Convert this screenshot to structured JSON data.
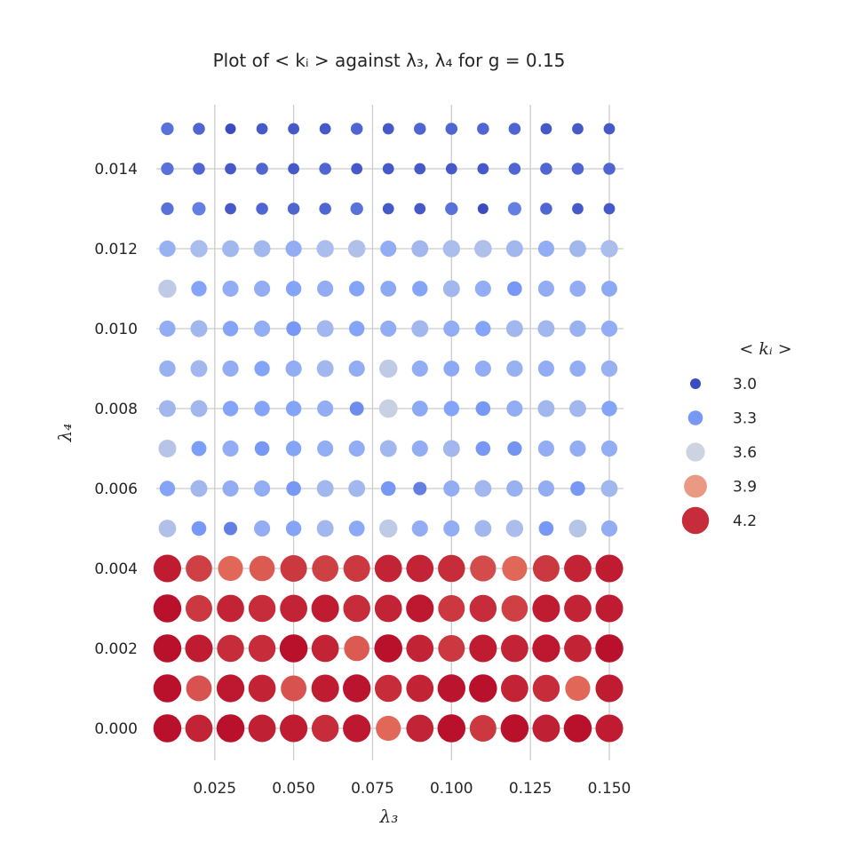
{
  "chart_data": {
    "type": "scatter",
    "title": "Plot of  < kᵢ >  against λ₃, λ₄ for g = 0.15",
    "xlabel": "λ₃",
    "ylabel": "λ₄",
    "x": [
      0.01,
      0.02,
      0.03,
      0.04,
      0.05,
      0.06,
      0.07,
      0.08,
      0.09,
      0.1,
      0.11,
      0.12,
      0.13,
      0.14,
      0.15
    ],
    "y": [
      0.0,
      0.001,
      0.002,
      0.003,
      0.004,
      0.005,
      0.006,
      0.007,
      0.008,
      0.009,
      0.01,
      0.011,
      0.012,
      0.013,
      0.014,
      0.015
    ],
    "xticks": [
      "0.025",
      "0.050",
      "0.075",
      "0.100",
      "0.125",
      "0.150"
    ],
    "xtick_values": [
      0.025,
      0.05,
      0.075,
      0.1,
      0.125,
      0.15
    ],
    "yticks": [
      "0.000",
      "0.002",
      "0.004",
      "0.006",
      "0.008",
      "0.010",
      "0.012",
      "0.014"
    ],
    "ytick_values": [
      0.0,
      0.002,
      0.004,
      0.006,
      0.008,
      0.01,
      0.012,
      0.014
    ],
    "xlim": [
      0.0065,
      0.1545
    ],
    "ylim": [
      -0.0008,
      0.0156
    ],
    "grid": true,
    "legend": {
      "title": "< kᵢ >",
      "placement": "right",
      "entries": [
        {
          "label": "3.0",
          "value": 3.0
        },
        {
          "label": "3.3",
          "value": 3.3
        },
        {
          "label": "3.6",
          "value": 3.6
        },
        {
          "label": "3.9",
          "value": 3.9
        },
        {
          "label": "4.2",
          "value": 4.2
        }
      ]
    },
    "color_range": [
      3.0,
      4.3
    ],
    "colormap": "coolwarm",
    "values": [
      [
        4.27,
        4.22,
        4.27,
        4.23,
        4.24,
        4.2,
        4.25,
        4.05,
        4.22,
        4.27,
        4.17,
        4.27,
        4.23,
        4.27,
        4.24
      ],
      [
        4.27,
        4.1,
        4.25,
        4.22,
        4.1,
        4.24,
        4.26,
        4.2,
        4.22,
        4.26,
        4.27,
        4.22,
        4.2,
        4.05,
        4.24
      ],
      [
        4.27,
        4.24,
        4.2,
        4.2,
        4.27,
        4.22,
        4.08,
        4.27,
        4.22,
        4.17,
        4.24,
        4.22,
        4.25,
        4.22,
        4.27
      ],
      [
        4.27,
        4.17,
        4.22,
        4.2,
        4.22,
        4.24,
        4.2,
        4.22,
        4.25,
        4.17,
        4.2,
        4.15,
        4.24,
        4.22,
        4.24
      ],
      [
        4.24,
        4.15,
        4.05,
        4.08,
        4.17,
        4.15,
        4.17,
        4.22,
        4.22,
        4.2,
        4.12,
        4.05,
        4.17,
        4.22,
        4.24
      ],
      [
        3.5,
        3.3,
        3.2,
        3.4,
        3.35,
        3.45,
        3.38,
        3.55,
        3.4,
        3.4,
        3.45,
        3.48,
        3.3,
        3.52,
        3.4
      ],
      [
        3.35,
        3.45,
        3.4,
        3.4,
        3.3,
        3.45,
        3.45,
        3.3,
        3.2,
        3.4,
        3.45,
        3.42,
        3.4,
        3.3,
        3.45
      ],
      [
        3.52,
        3.32,
        3.4,
        3.3,
        3.35,
        3.4,
        3.4,
        3.45,
        3.4,
        3.45,
        3.3,
        3.28,
        3.4,
        3.4,
        3.4
      ],
      [
        3.45,
        3.45,
        3.35,
        3.35,
        3.35,
        3.4,
        3.25,
        3.58,
        3.38,
        3.35,
        3.3,
        3.4,
        3.45,
        3.45,
        3.35
      ],
      [
        3.42,
        3.45,
        3.4,
        3.35,
        3.4,
        3.45,
        3.4,
        3.55,
        3.4,
        3.38,
        3.4,
        3.42,
        3.4,
        3.4,
        3.42
      ],
      [
        3.4,
        3.45,
        3.35,
        3.4,
        3.3,
        3.45,
        3.35,
        3.4,
        3.45,
        3.4,
        3.35,
        3.45,
        3.45,
        3.42,
        3.4
      ],
      [
        3.55,
        3.35,
        3.4,
        3.4,
        3.35,
        3.4,
        3.35,
        3.38,
        3.35,
        3.45,
        3.4,
        3.3,
        3.4,
        3.4,
        3.38
      ],
      [
        3.42,
        3.48,
        3.45,
        3.45,
        3.4,
        3.48,
        3.5,
        3.4,
        3.45,
        3.48,
        3.5,
        3.45,
        3.4,
        3.45,
        3.48
      ],
      [
        3.15,
        3.2,
        3.05,
        3.1,
        3.1,
        3.1,
        3.15,
        3.05,
        3.05,
        3.15,
        3.0,
        3.2,
        3.1,
        3.05,
        3.05
      ],
      [
        3.15,
        3.1,
        3.05,
        3.1,
        3.05,
        3.1,
        3.05,
        3.05,
        3.05,
        3.05,
        3.05,
        3.1,
        3.1,
        3.1,
        3.1
      ],
      [
        3.15,
        3.1,
        3.0,
        3.05,
        3.05,
        3.05,
        3.1,
        3.05,
        3.1,
        3.1,
        3.1,
        3.1,
        3.05,
        3.05,
        3.05
      ]
    ]
  }
}
